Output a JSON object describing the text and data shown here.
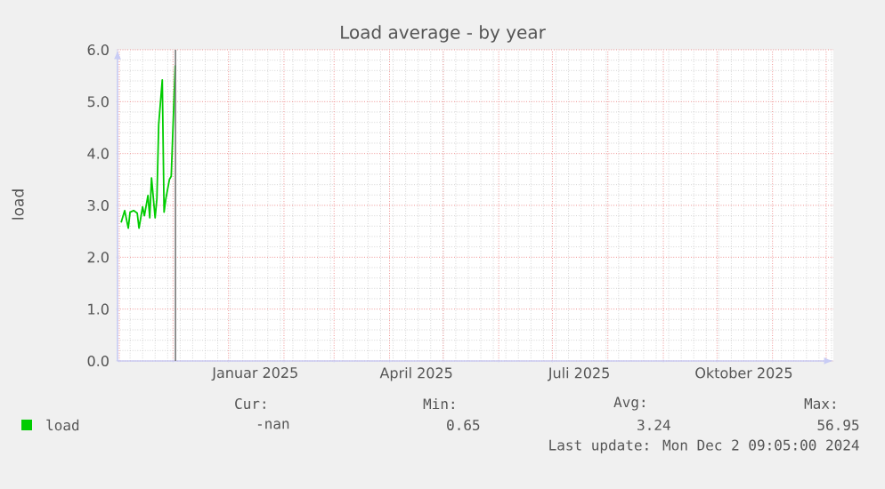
{
  "chart_data": {
    "type": "line",
    "title": "Load average - by year",
    "ylabel": "load",
    "x": [
      "2024-11-02",
      "2024-11-04",
      "2024-11-06",
      "2024-11-07",
      "2024-11-09",
      "2024-11-11",
      "2024-11-12",
      "2024-11-14",
      "2024-11-15",
      "2024-11-17",
      "2024-11-18",
      "2024-11-19",
      "2024-11-21",
      "2024-11-22",
      "2024-11-23",
      "2024-11-25",
      "2024-11-26",
      "2024-11-27",
      "2024-11-29",
      "2024-11-30",
      "2024-12-02T06:00"
    ],
    "series": [
      {
        "name": "load",
        "color": "#00cc00",
        "values": [
          2.67,
          2.9,
          2.56,
          2.87,
          2.9,
          2.85,
          2.56,
          2.97,
          2.8,
          3.19,
          2.76,
          3.53,
          2.76,
          3.13,
          4.56,
          5.42,
          2.87,
          3.13,
          3.5,
          3.56,
          5.7
        ]
      }
    ],
    "xlim": [
      "2024-10-31",
      "2025-12-05"
    ],
    "xticks": [
      {
        "value": "2024-11-01",
        "label": null
      },
      {
        "value": "2024-12-01",
        "label": null
      },
      {
        "value": "2025-01-01",
        "label": null
      },
      {
        "value": "2025-02-01",
        "label": null
      },
      {
        "value": "2025-03-01",
        "label": null
      },
      {
        "value": "2025-04-01",
        "label": null
      },
      {
        "value": "2025-05-01",
        "label": null
      },
      {
        "value": "2025-06-01",
        "label": null
      },
      {
        "value": "2025-07-01",
        "label": null
      },
      {
        "value": "2025-08-01",
        "label": null
      },
      {
        "value": "2025-09-01",
        "label": null
      },
      {
        "value": "2025-10-01",
        "label": null
      },
      {
        "value": "2025-11-01",
        "label": null
      },
      {
        "value": "2025-12-01",
        "label": null
      },
      {
        "value": "2025-01-16",
        "label": "Januar 2025"
      },
      {
        "value": "2025-04-16",
        "label": "April 2025"
      },
      {
        "value": "2025-07-16",
        "label": "Juli 2025"
      },
      {
        "value": "2025-10-16",
        "label": "Oktober 2025"
      }
    ],
    "ylim": [
      0,
      6
    ],
    "yticks": [
      {
        "value": 0,
        "label": "0.0"
      },
      {
        "value": 1,
        "label": "1.0"
      },
      {
        "value": 2,
        "label": "2.0"
      },
      {
        "value": 3,
        "label": "3.0"
      },
      {
        "value": 4,
        "label": "4.0"
      },
      {
        "value": 5,
        "label": "5.0"
      },
      {
        "value": 6,
        "label": "6.0"
      }
    ],
    "ref_lines": [
      {
        "axis": "x",
        "value": "2024-12-02T09:05",
        "color": "#777777"
      }
    ],
    "grid": true,
    "legend": "bottom left",
    "marker": "none",
    "line_style": "solid",
    "annotations": [
      "Cur:",
      "Min:",
      "Avg:",
      "Max:",
      "-nan",
      "0.65",
      "3.24",
      "56.95",
      "Last update: Mon Dec  2 09:05:00 2024"
    ]
  }
}
